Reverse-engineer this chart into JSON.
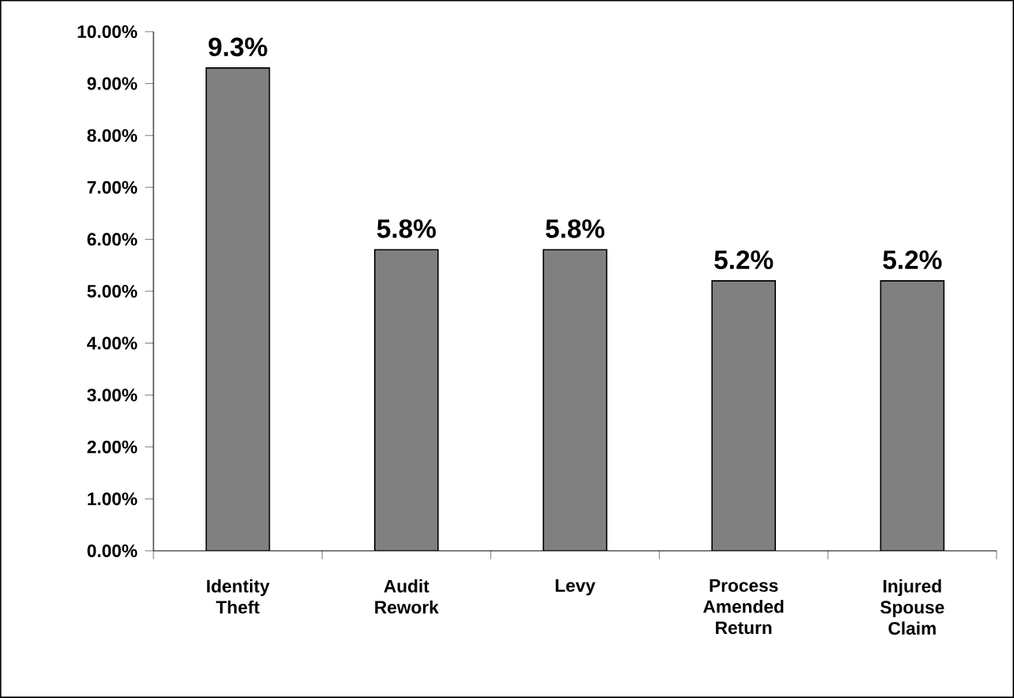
{
  "chart_data": {
    "type": "bar",
    "categories": [
      "Identity Theft",
      "Audit Rework",
      "Levy",
      "Process Amended Return",
      "Injured Spouse Claim"
    ],
    "values": [
      9.3,
      5.8,
      5.8,
      5.2,
      5.2
    ],
    "value_labels": [
      "9.3%",
      "5.8%",
      "5.8%",
      "5.2%",
      "5.2%"
    ],
    "color": "#808080",
    "ylim": [
      0,
      10
    ],
    "yticks": [
      {
        "value": 0,
        "label": "0.00%"
      },
      {
        "value": 1,
        "label": "1.00%"
      },
      {
        "value": 2,
        "label": "2.00%"
      },
      {
        "value": 3,
        "label": "3.00%"
      },
      {
        "value": 4,
        "label": "4.00%"
      },
      {
        "value": 5,
        "label": "5.00%"
      },
      {
        "value": 6,
        "label": "6.00%"
      },
      {
        "value": 7,
        "label": "7.00%"
      },
      {
        "value": 8,
        "label": "8.00%"
      },
      {
        "value": 9,
        "label": "9.00%"
      },
      {
        "value": 10,
        "label": "10.00%"
      }
    ],
    "grid": false
  }
}
